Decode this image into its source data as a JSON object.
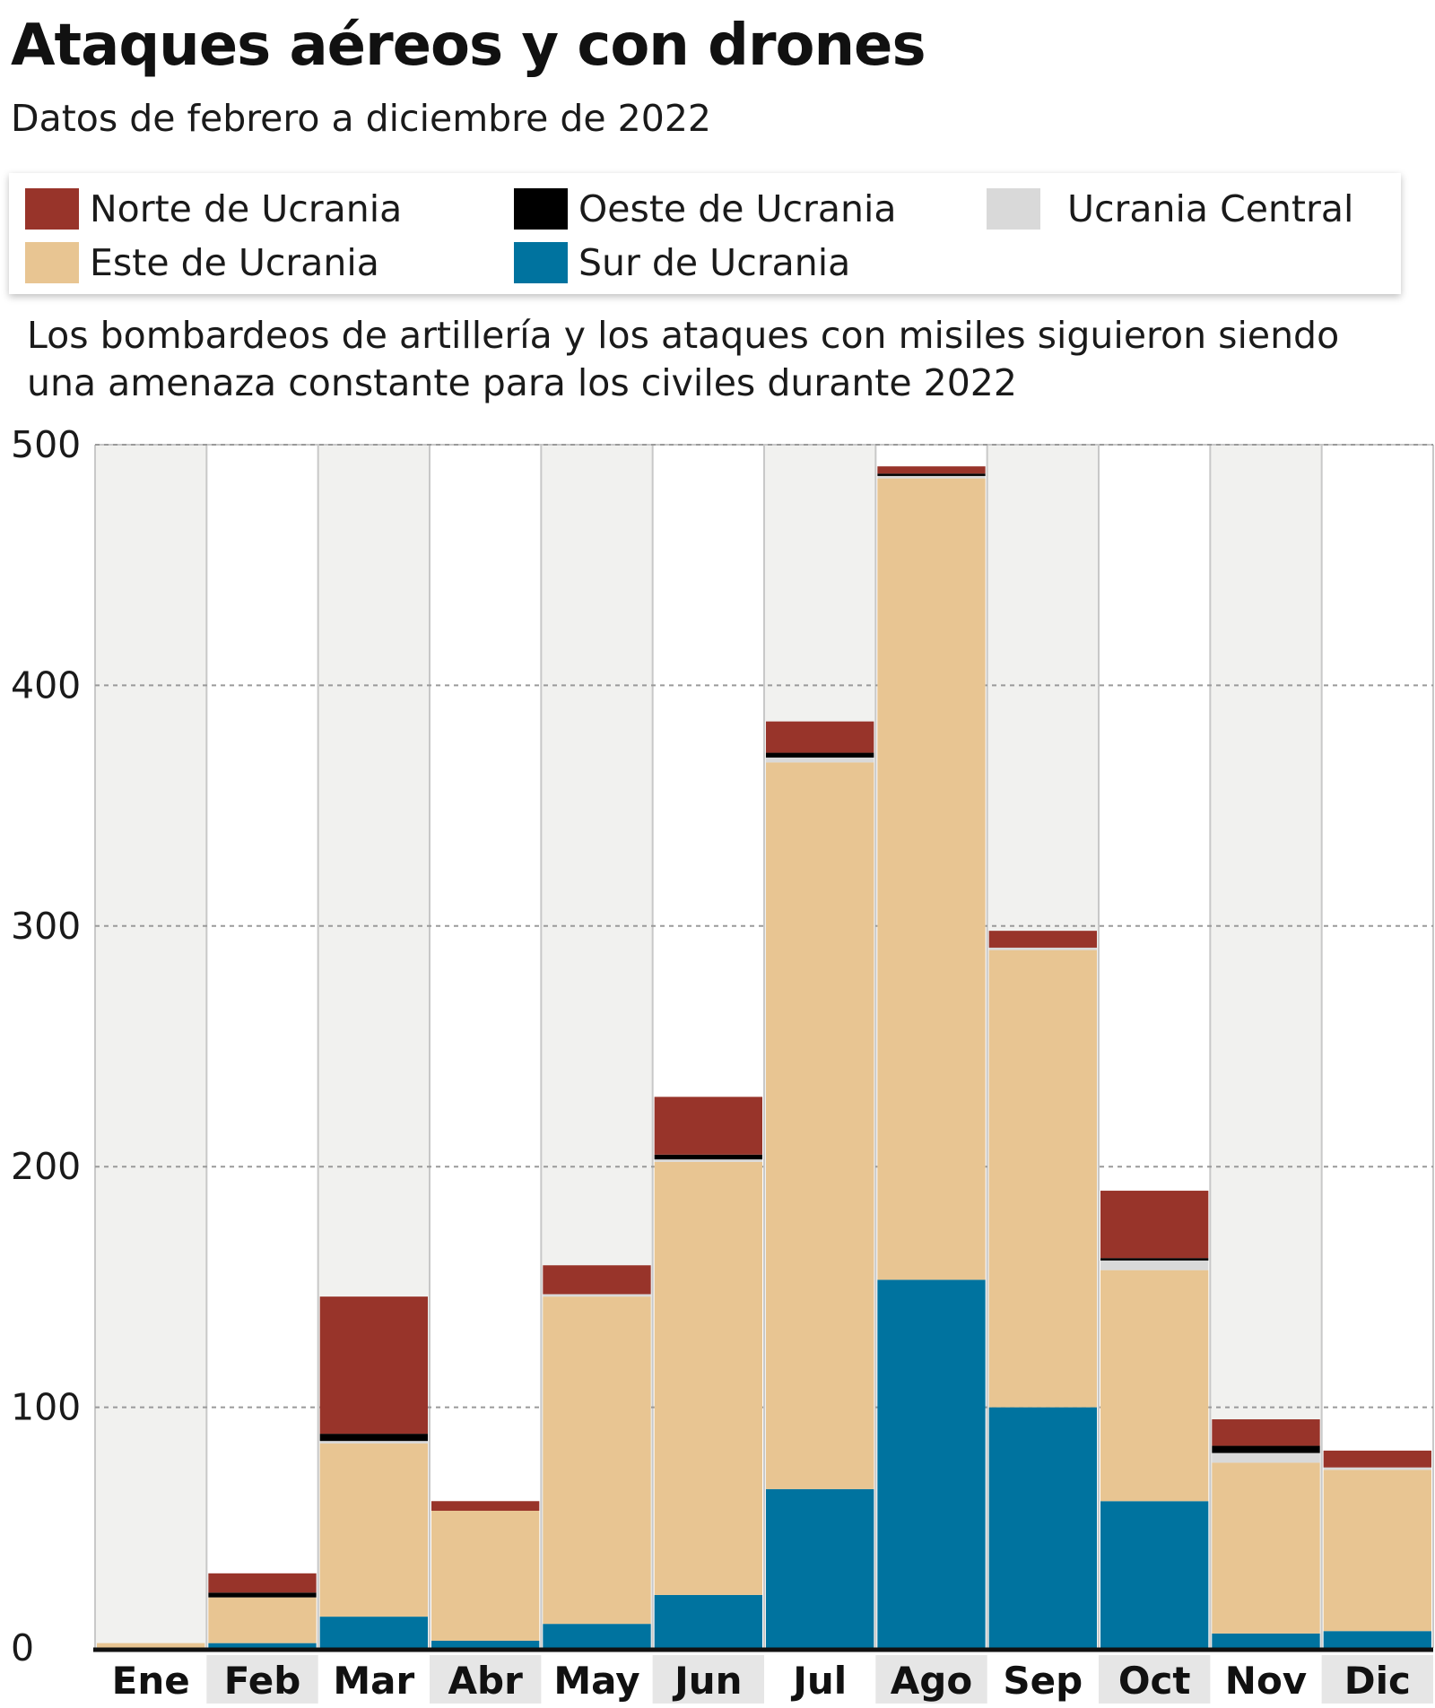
{
  "header": {
    "title": "Ataques aéreos y con drones",
    "subtitle": "Datos de febrero a diciembre de 2022"
  },
  "legend": {
    "items": [
      {
        "label": "Norte de Ucrania",
        "color": "#98342a"
      },
      {
        "label": "Oeste de Ucrania",
        "color": "#000000"
      },
      {
        "label": "Ucrania Central",
        "color": "#d9d9d9"
      },
      {
        "label": "Este de Ucrania",
        "color": "#e8c592"
      },
      {
        "label": "Sur de Ucrania",
        "color": "#00739f"
      }
    ]
  },
  "note": "Los bombardeos de artillería y los ataques con misiles siguieron siendo una amenaza constante para los civiles durante 2022",
  "chart_data": {
    "type": "bar",
    "stacked": true,
    "categories": [
      "Ene",
      "Feb",
      "Mar",
      "Abr",
      "May",
      "Jun",
      "Jul",
      "Ago",
      "Sep",
      "Oct",
      "Nov",
      "Dic"
    ],
    "series": [
      {
        "name": "Sur de Ucrania",
        "color": "#00739f",
        "values": [
          0,
          2,
          13,
          3,
          10,
          22,
          66,
          153,
          100,
          61,
          6,
          7
        ]
      },
      {
        "name": "Este de Ucrania",
        "color": "#e8c592",
        "values": [
          2,
          19,
          72,
          54,
          136,
          180,
          302,
          333,
          190,
          96,
          71,
          67
        ]
      },
      {
        "name": "Ucrania Central",
        "color": "#d9d9d9",
        "values": [
          0,
          0,
          1,
          0,
          1,
          1,
          2,
          1,
          1,
          4,
          4,
          1
        ]
      },
      {
        "name": "Oeste de Ucrania",
        "color": "#000000",
        "values": [
          0,
          2,
          3,
          0,
          0,
          2,
          2,
          1,
          0,
          1,
          3,
          0
        ]
      },
      {
        "name": "Norte de Ucrania",
        "color": "#98342a",
        "values": [
          0,
          8,
          57,
          4,
          12,
          24,
          13,
          3,
          7,
          28,
          11,
          7
        ]
      }
    ],
    "yticks": [
      0,
      100,
      200,
      300,
      400,
      500
    ],
    "ylim": [
      0,
      500
    ],
    "grid": true,
    "column_band_color": "#f1f1ef",
    "xlabel_band_color": "#e6e6e6",
    "legend_position": "top"
  }
}
